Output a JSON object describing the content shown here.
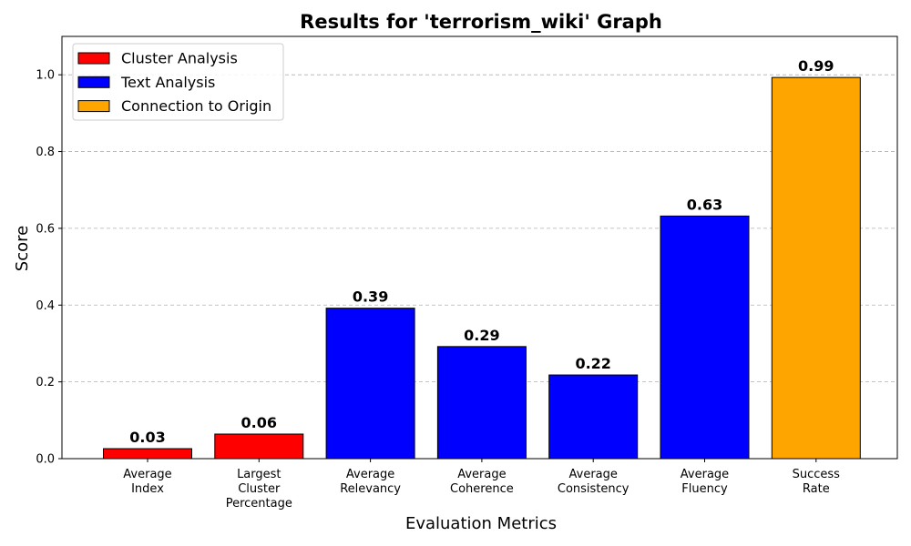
{
  "chart_data": {
    "type": "bar",
    "title": "Results for 'terrorism_wiki' Graph",
    "xlabel": "Evaluation Metrics",
    "ylabel": "Score",
    "ylim": [
      0,
      1.1
    ],
    "yticks": [
      "0.0",
      "0.2",
      "0.4",
      "0.6",
      "0.8",
      "1.0"
    ],
    "grid": "horizontal-dashed",
    "legend_position": "top-left",
    "categories": [
      [
        "Average",
        "Index"
      ],
      [
        "Largest",
        "Cluster",
        "Percentage"
      ],
      [
        "Average",
        "Relevancy"
      ],
      [
        "Average",
        "Coherence"
      ],
      [
        "Average",
        "Consistency"
      ],
      [
        "Average",
        "Fluency"
      ],
      [
        "Success",
        "Rate"
      ]
    ],
    "values": [
      0.026,
      0.064,
      0.392,
      0.292,
      0.218,
      0.632,
      0.993
    ],
    "value_labels": [
      "0.03",
      "0.06",
      "0.39",
      "0.29",
      "0.22",
      "0.63",
      "0.99"
    ],
    "bar_groups": [
      0,
      0,
      1,
      1,
      1,
      1,
      2
    ],
    "groups": [
      {
        "name": "Cluster Analysis",
        "color": "#ff0000"
      },
      {
        "name": "Text Analysis",
        "color": "#0000ff"
      },
      {
        "name": "Connection to Origin",
        "color": "#ffa500"
      }
    ]
  }
}
